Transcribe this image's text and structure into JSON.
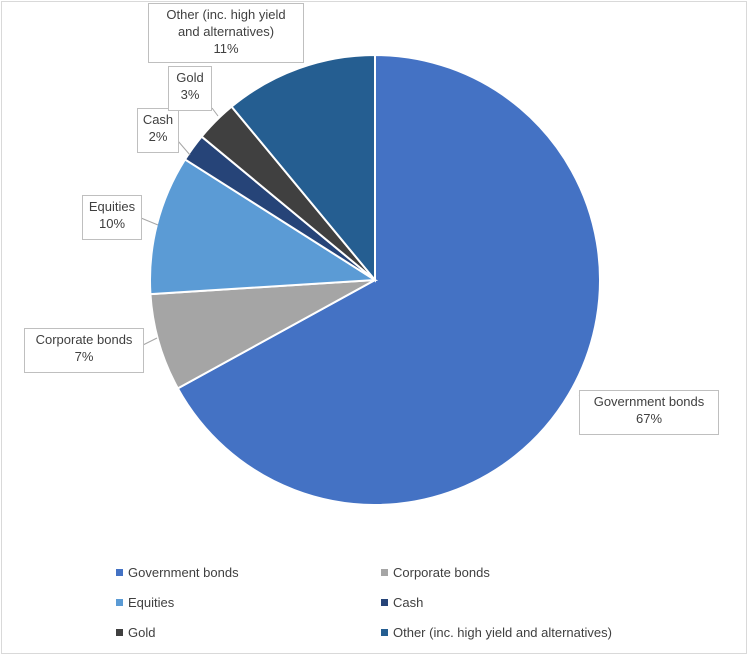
{
  "chart_data": {
    "type": "pie",
    "title": "",
    "start_angle_deg": 0,
    "direction": "clockwise",
    "legend_position": "bottom",
    "slices": [
      {
        "label": "Government bonds",
        "value": 67,
        "value_label": "67%",
        "color": "#4472C4"
      },
      {
        "label": "Corporate bonds",
        "value": 7,
        "value_label": "7%",
        "color": "#A5A5A5"
      },
      {
        "label": "Equities",
        "value": 10,
        "value_label": "10%",
        "color": "#5B9BD5"
      },
      {
        "label": "Cash",
        "value": 2,
        "value_label": "2%",
        "color": "#264478"
      },
      {
        "label": "Gold",
        "value": 3,
        "value_label": "3%",
        "color": "#404040"
      },
      {
        "label": "Other (inc. high yield and alternatives)",
        "value": 11,
        "value_label": "11%",
        "color": "#255E91"
      }
    ]
  },
  "callouts": {
    "government": {
      "line1": "Government bonds",
      "line2": "67%"
    },
    "corporate": {
      "line1": "Corporate bonds",
      "line2": "7%"
    },
    "equities": {
      "line1": "Equities",
      "line2": "10%"
    },
    "cash": {
      "line1": "Cash",
      "line2": "2%"
    },
    "gold": {
      "line1": "Gold",
      "line2": "3%"
    },
    "other": {
      "line1": "Other (inc. high yield",
      "line2": "and alternatives)",
      "line3": "11%"
    }
  },
  "legend": [
    {
      "label": "Government bonds",
      "color": "#4472C4"
    },
    {
      "label": "Corporate bonds",
      "color": "#A5A5A5"
    },
    {
      "label": "Equities",
      "color": "#5B9BD5"
    },
    {
      "label": "Cash",
      "color": "#264478"
    },
    {
      "label": "Gold",
      "color": "#404040"
    },
    {
      "label": "Other (inc. high yield and alternatives)",
      "color": "#255E91"
    }
  ]
}
